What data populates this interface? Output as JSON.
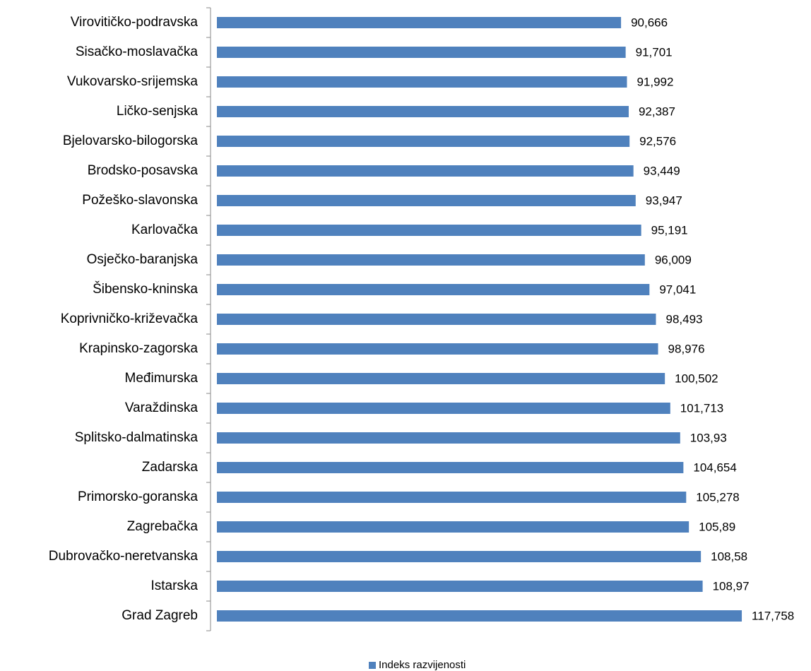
{
  "chart_data": {
    "type": "hbar",
    "categories": [
      "Virovitičko-podravska",
      "Sisačko-moslavačka",
      "Vukovarsko-srijemska",
      "Ličko-senjska",
      "Bjelovarsko-bilogorska",
      "Brodsko-posavska",
      "Požeško-slavonska",
      "Karlovačka",
      "Osječko-baranjska",
      "Šibensko-kninska",
      "Koprivničko-križevačka",
      "Krapinsko-zagorska",
      "Međimurska",
      "Varaždinska",
      "Splitsko-dalmatinska",
      "Zadarska",
      "Primorsko-goranska",
      "Zagrebačka",
      "Dubrovačko-neretvanska",
      "Istarska",
      "Grad Zagreb"
    ],
    "series": [
      {
        "name": "Indeks razvijenosti",
        "color": "#4f81bd",
        "values": [
          90.666,
          91.701,
          91.992,
          92.387,
          92.576,
          93.449,
          93.947,
          95.191,
          96.009,
          97.041,
          98.493,
          98.976,
          100.502,
          101.713,
          103.93,
          104.654,
          105.278,
          105.89,
          108.58,
          108.97,
          117.758
        ],
        "value_labels": [
          "90,666",
          "91,701",
          "91,992",
          "92,387",
          "92,576",
          "93,449",
          "93,947",
          "95,191",
          "96,009",
          "97,041",
          "98,493",
          "98,976",
          "100,502",
          "101,713",
          "103,93",
          "104,654",
          "105,278",
          "105,89",
          "108,58",
          "108,97",
          "117,758"
        ]
      }
    ],
    "xlim": [
      0,
      120
    ],
    "legend": "bottom"
  }
}
